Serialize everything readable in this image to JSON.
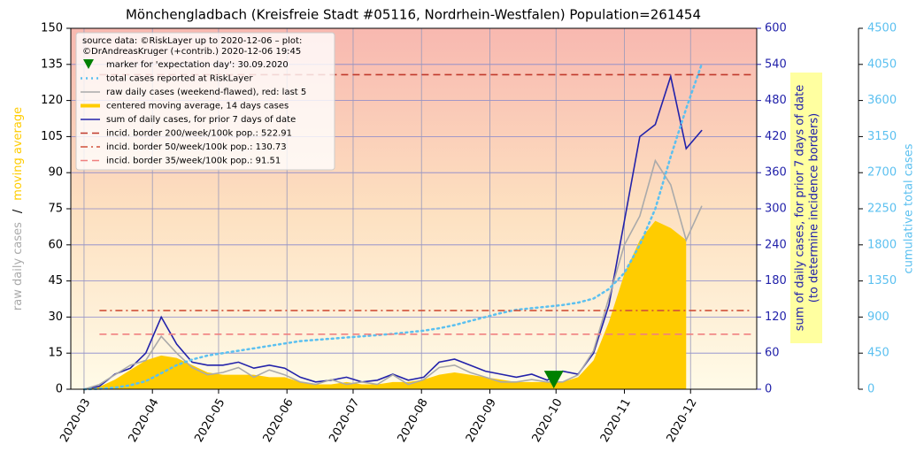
{
  "chart_data": {
    "type": "line",
    "title": "Mönchengladbach (Kreisfreie Stadt #05116, Nordrhein-Westfalen) Population=261454",
    "source": [
      "source data: ©RiskLayer up to 2020-12-06 – plot:",
      "©DrAndreasKruger (+contrib.) 2020-12-06 19:45"
    ],
    "ylabel": [
      "raw daily cases",
      "/",
      "moving average"
    ],
    "ylabel_colors": [
      "#aaaaaa",
      "#000000",
      "#ffcc00"
    ],
    "y2label": [
      "sum of daily cases, for prior 7 days of date",
      "(to determine incidence borders)"
    ],
    "y3label": "cumulative total cases",
    "x": [
      "2020-03-01",
      "2020-03-08",
      "2020-03-15",
      "2020-03-22",
      "2020-03-29",
      "2020-04-05",
      "2020-04-12",
      "2020-04-19",
      "2020-04-26",
      "2020-05-03",
      "2020-05-10",
      "2020-05-17",
      "2020-05-24",
      "2020-05-31",
      "2020-06-07",
      "2020-06-14",
      "2020-06-21",
      "2020-06-28",
      "2020-07-05",
      "2020-07-12",
      "2020-07-19",
      "2020-07-26",
      "2020-08-02",
      "2020-08-09",
      "2020-08-16",
      "2020-08-23",
      "2020-08-30",
      "2020-09-06",
      "2020-09-13",
      "2020-09-20",
      "2020-09-27",
      "2020-10-04",
      "2020-10-11",
      "2020-10-18",
      "2020-10-25",
      "2020-11-01",
      "2020-11-08",
      "2020-11-15",
      "2020-11-22",
      "2020-11-29",
      "2020-12-06"
    ],
    "series": [
      {
        "name": "total cases reported at RiskLayer",
        "color": "#5bc0f0",
        "kind": "line",
        "dash": "dotted",
        "axis": "y3",
        "values": [
          0,
          5,
          20,
          50,
          100,
          200,
          300,
          370,
          420,
          450,
          480,
          510,
          540,
          570,
          600,
          615,
          630,
          645,
          660,
          675,
          690,
          710,
          730,
          760,
          800,
          850,
          900,
          950,
          990,
          1010,
          1030,
          1050,
          1080,
          1130,
          1250,
          1450,
          1800,
          2250,
          2900,
          3500,
          4050
        ]
      },
      {
        "name": "raw daily cases (weekend-flawed), red: last 5",
        "color": "#aaaaaa",
        "kind": "line",
        "dash": "solid",
        "axis": "y",
        "values": [
          0,
          2,
          6,
          10,
          12,
          22,
          15,
          9,
          6,
          7,
          9,
          5,
          8,
          6,
          3,
          2,
          4,
          2,
          3,
          2,
          6,
          2,
          4,
          9,
          10,
          7,
          5,
          3,
          3,
          4,
          3,
          3,
          6,
          16,
          38,
          60,
          72,
          95,
          85,
          62,
          76
        ]
      },
      {
        "name": "centered moving average, 14 days cases",
        "color": "#ffcc00",
        "kind": "area",
        "dash": "solid",
        "axis": "y",
        "values": [
          0,
          1,
          4,
          8,
          12,
          14,
          13,
          10,
          7,
          6,
          6,
          6,
          5,
          5,
          3,
          2,
          2,
          3,
          2,
          2,
          3,
          3,
          4,
          6,
          7,
          6,
          5,
          4,
          3,
          3,
          3,
          3,
          5,
          12,
          28,
          48,
          62,
          70,
          67,
          62,
          null
        ]
      },
      {
        "name": "sum of daily cases, for prior 7 days of date",
        "color": "#2222aa",
        "kind": "line",
        "dash": "solid",
        "axis": "y2",
        "values": [
          0,
          5,
          25,
          35,
          60,
          120,
          75,
          45,
          40,
          40,
          45,
          35,
          40,
          35,
          20,
          12,
          15,
          20,
          12,
          15,
          25,
          15,
          20,
          45,
          50,
          40,
          30,
          25,
          20,
          25,
          15,
          30,
          25,
          60,
          140,
          280,
          420,
          440,
          520,
          400,
          430
        ]
      }
    ],
    "marker": {
      "name": "marker for 'expectation day': 30.09.2020",
      "x": "2020-09-30",
      "y": 4,
      "color": "#008000"
    },
    "hlines": [
      {
        "name": "incid. border 200/week/100k pop.: 522.91",
        "value": 522.91,
        "color": "#c0392b",
        "dash": "dashed",
        "axis": "y2"
      },
      {
        "name": "incid. border 50/week/100k pop.: 130.73",
        "value": 130.73,
        "color": "#d0503a",
        "dash": "dashdot",
        "axis": "y2"
      },
      {
        "name": "incid. border 35/week/100k pop.: 91.51",
        "value": 91.51,
        "color": "#f08080",
        "dash": "dashed",
        "axis": "y2"
      }
    ],
    "xlim": [
      "2020-02-24",
      "2020-12-31"
    ],
    "xticks": [
      {
        "value": "2020-03-01",
        "label": "2020-03"
      },
      {
        "value": "2020-04-01",
        "label": "2020-04"
      },
      {
        "value": "2020-05-01",
        "label": "2020-05"
      },
      {
        "value": "2020-06-01",
        "label": "2020-06"
      },
      {
        "value": "2020-07-01",
        "label": "2020-07"
      },
      {
        "value": "2020-08-01",
        "label": "2020-08"
      },
      {
        "value": "2020-09-01",
        "label": "2020-09"
      },
      {
        "value": "2020-10-01",
        "label": "2020-10"
      },
      {
        "value": "2020-11-01",
        "label": "2020-11"
      },
      {
        "value": "2020-12-01",
        "label": "2020-12"
      }
    ],
    "ylim": [
      0,
      150
    ],
    "yticks": [
      0,
      15,
      30,
      45,
      60,
      75,
      90,
      105,
      120,
      135,
      150
    ],
    "y2lim": [
      0,
      600
    ],
    "y2ticks": [
      0,
      60,
      120,
      180,
      240,
      300,
      360,
      420,
      480,
      540,
      600
    ],
    "y2color": "#2222aa",
    "y3lim": [
      0,
      4500
    ],
    "y3ticks": [
      0,
      450,
      900,
      1350,
      1800,
      2250,
      2700,
      3150,
      3600,
      4050,
      4500
    ],
    "y3color": "#5bc0f0",
    "grid": true
  }
}
